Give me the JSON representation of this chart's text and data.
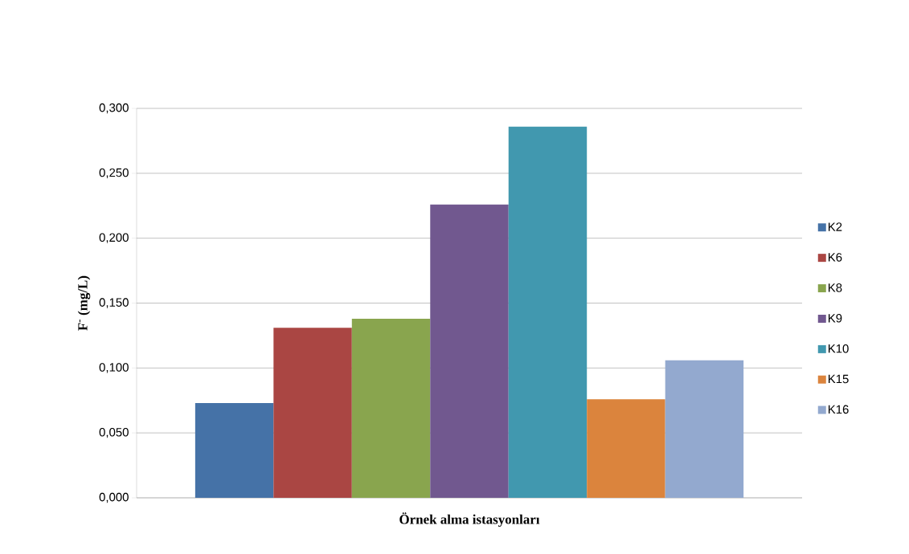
{
  "chart_data": {
    "type": "bar",
    "xlabel": "Örnek alma istasyonları",
    "ylabel": "F$^{-}$ (mg/L)",
    "categories": [
      null
    ],
    "series": [
      {
        "name": "K2",
        "color": "#4572a7",
        "values": [
          0.073
        ]
      },
      {
        "name": "K6",
        "color": "#aa4643",
        "values": [
          0.131
        ]
      },
      {
        "name": "K8",
        "color": "#89a54e",
        "values": [
          0.138
        ]
      },
      {
        "name": "K9",
        "color": "#71588f",
        "values": [
          0.226
        ]
      },
      {
        "name": "K10",
        "color": "#4198af",
        "values": [
          0.286
        ]
      },
      {
        "name": "K15",
        "color": "#db843d",
        "values": [
          0.076
        ]
      },
      {
        "name": "K16",
        "color": "#93a9cf",
        "values": [
          0.106
        ]
      }
    ],
    "ylim": [
      0,
      0.3
    ],
    "yticks": [
      {
        "value": 0,
        "label": "0,000"
      },
      {
        "value": 0.05,
        "label": "0,050"
      },
      {
        "value": 0.1,
        "label": "0,100"
      },
      {
        "value": 0.15,
        "label": "0,150"
      },
      {
        "value": 0.2,
        "label": "0,200"
      },
      {
        "value": 0.25,
        "label": "0,250"
      },
      {
        "value": 0.3,
        "label": "0,300"
      }
    ],
    "grid": "y",
    "legend": "right"
  }
}
